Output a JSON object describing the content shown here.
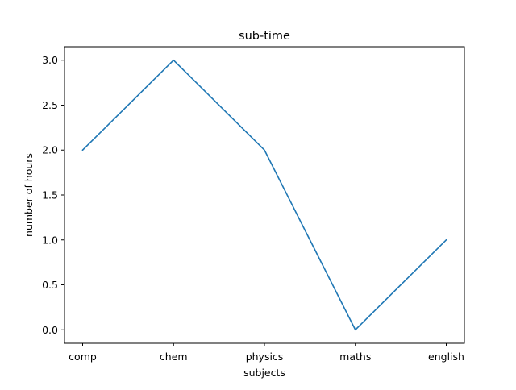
{
  "chart_data": {
    "type": "line",
    "title": "sub-time",
    "xlabel": "subjects",
    "ylabel": "number of hours",
    "categories": [
      "comp",
      "chem",
      "physics",
      "maths",
      "english"
    ],
    "series": [
      {
        "values": [
          2,
          3,
          2,
          0,
          1
        ]
      }
    ],
    "ylim": [
      -0.15,
      3.15
    ],
    "yticks": [
      0.0,
      0.5,
      1.0,
      1.5,
      2.0,
      2.5,
      3.0
    ],
    "ytick_labels": [
      "0.0",
      "0.5",
      "1.0",
      "1.5",
      "2.0",
      "2.5",
      "3.0"
    ],
    "grid": false,
    "colors": {
      "line": "#1f77b4",
      "axes": "#000000"
    }
  }
}
